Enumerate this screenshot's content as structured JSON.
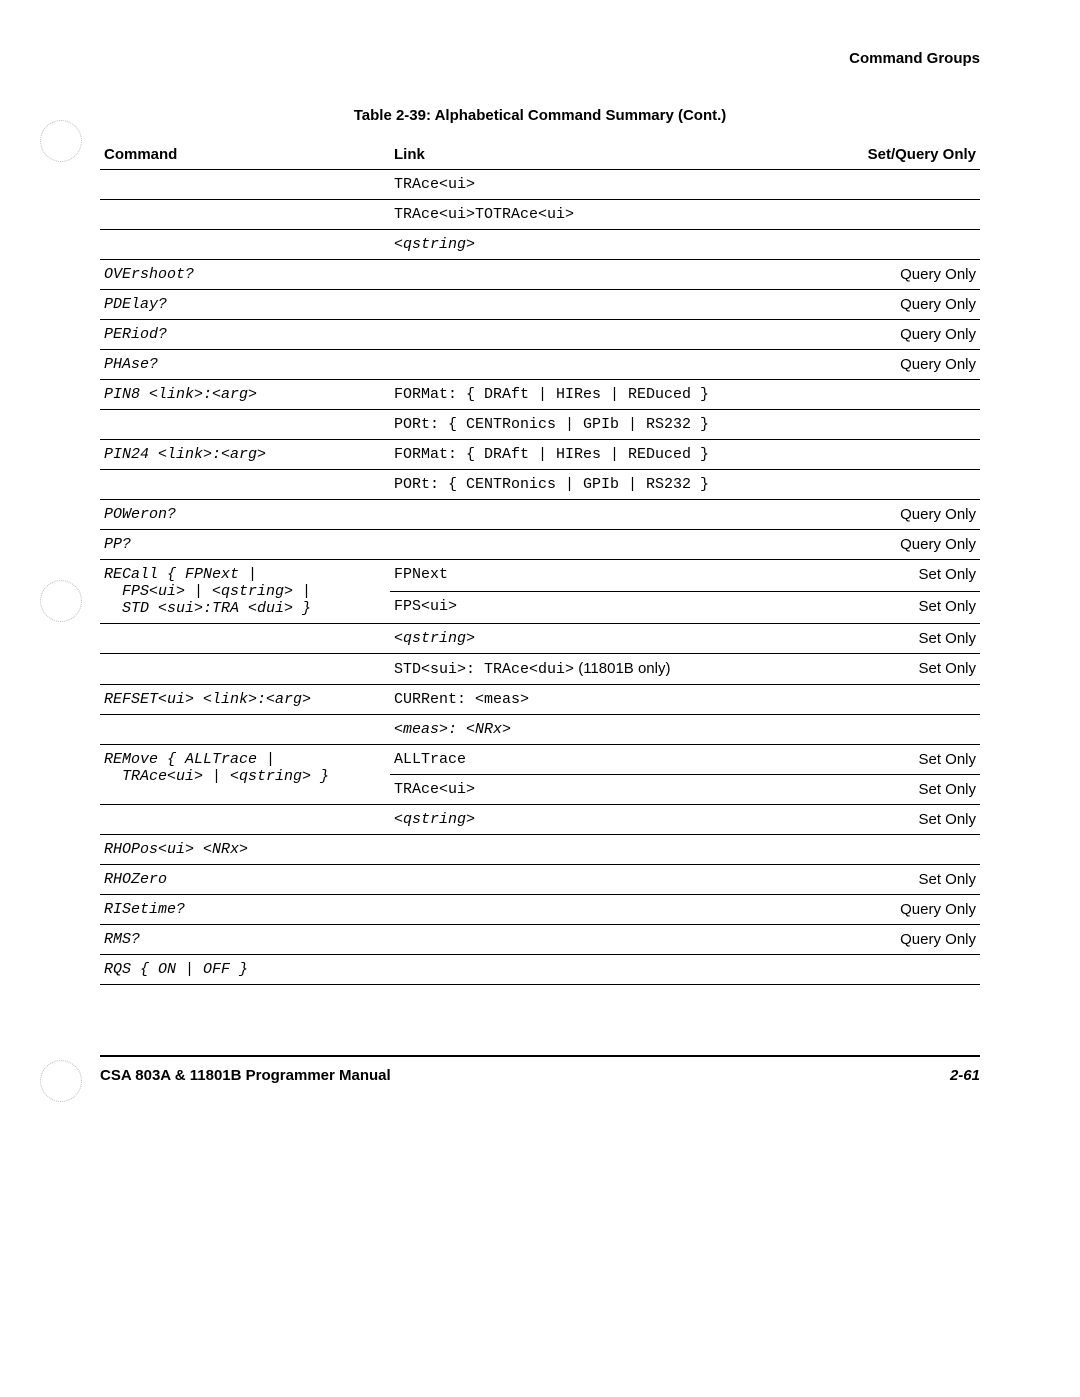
{
  "header": {
    "section": "Command Groups"
  },
  "table": {
    "caption": "Table 2-39:  Alphabetical Command Summary (Cont.)",
    "columns": {
      "command": "Command",
      "link": "Link",
      "setquery": "Set/Query Only"
    },
    "rows": [
      {
        "command": "",
        "link": "TRAce<ui>",
        "sq": ""
      },
      {
        "command": "",
        "link": "TRAce<ui>TOTRAce<ui>",
        "sq": ""
      },
      {
        "command": "",
        "link": "<qstring>",
        "sq": "",
        "linkItalic": true
      },
      {
        "command": "OVErshoot?",
        "link": "",
        "sq": "Query Only"
      },
      {
        "command": "PDElay?",
        "link": "",
        "sq": "Query Only"
      },
      {
        "command": "PERiod?",
        "link": "",
        "sq": "Query Only"
      },
      {
        "command": "PHAse?",
        "link": "",
        "sq": "Query Only"
      },
      {
        "command": "PIN8 <link>:<arg>",
        "link": "FORMat: { DRAft | HIRes | REDuced }",
        "sq": ""
      },
      {
        "command": "",
        "link": "PORt: { CENTRonics | GPIb | RS232 }",
        "sq": "",
        "thick": true
      },
      {
        "command": "PIN24 <link>:<arg>",
        "link": "FORMat: { DRAft | HIRes | REDuced }",
        "sq": ""
      },
      {
        "command": "",
        "link": "PORt: { CENTRonics | GPIb | RS232 }",
        "sq": "",
        "thick": true
      },
      {
        "command": "POWeron?",
        "link": "",
        "sq": "Query Only"
      },
      {
        "command": "PP?",
        "link": "",
        "sq": "Query Only",
        "thick": true
      },
      {
        "command": "RECall { FPNext |\n  FPS<ui> | <qstring> |\n  STD <sui>:TRA <dui> }",
        "link": "FPNext",
        "sq": "Set Only",
        "rowspan": 2,
        "noBottom": true
      },
      {
        "command": "",
        "link": "FPS<ui>",
        "sq": "Set Only"
      },
      {
        "command": "",
        "link": "<qstring>",
        "sq": "Set Only",
        "linkItalic": true
      },
      {
        "command": "",
        "link": "STD<sui>: TRAce<dui>",
        "linkSuffix": " (11801B only)",
        "sq": "Set Only",
        "thick": true
      },
      {
        "command": "REFSET<ui> <link>:<arg>",
        "link": "CURRent: <meas>",
        "sq": ""
      },
      {
        "command": "",
        "link": "<meas>: <NRx>",
        "sq": "",
        "linkItalic": true,
        "thick": true
      },
      {
        "command": "REMove { ALLTrace |\n  TRAce<ui> | <qstring> }",
        "link": "ALLTrace",
        "sq": "Set Only",
        "rowspan": 2,
        "noBottom": true
      },
      {
        "command": "",
        "link": "TRAce<ui>",
        "sq": "Set Only"
      },
      {
        "command": "",
        "link": "<qstring>",
        "sq": "Set Only",
        "linkItalic": true,
        "thick": true
      },
      {
        "command": "RHOPos<ui> <NRx>",
        "link": "",
        "sq": ""
      },
      {
        "command": "RHOZero",
        "link": "",
        "sq": "Set Only"
      },
      {
        "command": "RISetime?",
        "link": "",
        "sq": "Query Only"
      },
      {
        "command": "RMS?",
        "link": "",
        "sq": "Query Only"
      },
      {
        "command": "RQS { ON | OFF }",
        "link": "",
        "sq": "",
        "thick": true
      }
    ]
  },
  "footer": {
    "manual": "CSA 803A & 11801B Programmer Manual",
    "page": "2-61"
  }
}
